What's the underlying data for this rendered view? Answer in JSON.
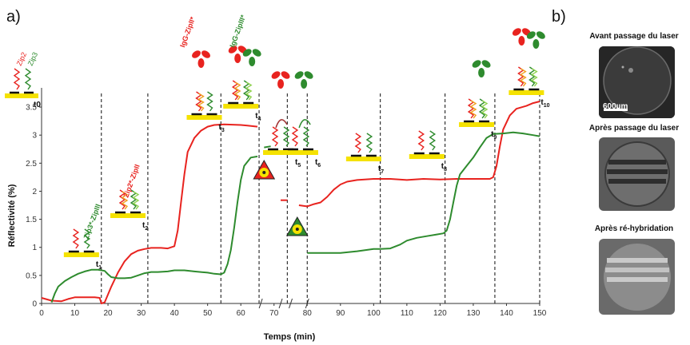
{
  "panel_a_label": "a)",
  "panel_b_label": "b)",
  "chart_data": {
    "type": "line",
    "xlabel": "Temps (min)",
    "ylabel": "Réflectivité (%)",
    "xlim": [
      0,
      150
    ],
    "ylim": [
      0,
      3.7
    ],
    "x_ticks": [
      "0",
      "10",
      "20",
      "30",
      "40",
      "50",
      "60",
      "70",
      "80",
      "90",
      "100",
      "110",
      "120",
      "130",
      "140",
      "150"
    ],
    "y_ticks": [
      "0",
      "0.5",
      "1",
      "1.5",
      "2",
      "2.5",
      "3",
      "3.5"
    ],
    "colors": {
      "red": "#e8231f",
      "green": "#2e8b2e"
    },
    "series": [
      {
        "color": "red",
        "segments": [
          [
            [
              0,
              0.1
            ],
            [
              3,
              0.05
            ],
            [
              6,
              0.04
            ],
            [
              8,
              0.08
            ],
            [
              10,
              0.11
            ],
            [
              14,
              0.11
            ],
            [
              16,
              0.11
            ],
            [
              17.5,
              0.1
            ],
            [
              18,
              0.0
            ],
            [
              19,
              0.02
            ],
            [
              21,
              0.3
            ],
            [
              23,
              0.55
            ],
            [
              25,
              0.75
            ],
            [
              27,
              0.88
            ],
            [
              29,
              0.94
            ],
            [
              31,
              0.97
            ],
            [
              33,
              0.99
            ],
            [
              36,
              0.99
            ],
            [
              38,
              0.98
            ],
            [
              40,
              1.02
            ],
            [
              41,
              1.3
            ],
            [
              42,
              1.8
            ],
            [
              43,
              2.3
            ],
            [
              44,
              2.7
            ],
            [
              46,
              2.95
            ],
            [
              48,
              3.08
            ],
            [
              50,
              3.15
            ],
            [
              52,
              3.18
            ],
            [
              55,
              3.19
            ],
            [
              60,
              3.18
            ],
            [
              62,
              3.17
            ],
            [
              65,
              3.15
            ]
          ],
          [
            [
              72,
              1.84
            ],
            [
              74,
              1.84
            ]
          ],
          [
            [
              77.5,
              1.75
            ],
            [
              80,
              1.73
            ],
            [
              82,
              1.77
            ],
            [
              84,
              1.8
            ],
            [
              86,
              1.9
            ],
            [
              88,
              2.03
            ],
            [
              90,
              2.12
            ],
            [
              92,
              2.17
            ],
            [
              95,
              2.2
            ],
            [
              100,
              2.22
            ],
            [
              105,
              2.22
            ],
            [
              110,
              2.2
            ],
            [
              115,
              2.22
            ],
            [
              120,
              2.21
            ],
            [
              125,
              2.22
            ],
            [
              130,
              2.22
            ],
            [
              135,
              2.22
            ],
            [
              136,
              2.25
            ],
            [
              137,
              2.45
            ],
            [
              138,
              2.8
            ],
            [
              139,
              3.1
            ],
            [
              141,
              3.35
            ],
            [
              143,
              3.47
            ],
            [
              146,
              3.52
            ],
            [
              148,
              3.57
            ],
            [
              150,
              3.6
            ]
          ]
        ]
      },
      {
        "color": "green",
        "segments": [
          [
            [
              3,
              0.02
            ],
            [
              4,
              0.18
            ],
            [
              5,
              0.3
            ],
            [
              7,
              0.4
            ],
            [
              9,
              0.47
            ],
            [
              11,
              0.53
            ],
            [
              13,
              0.57
            ],
            [
              15,
              0.6
            ],
            [
              17,
              0.6
            ],
            [
              19,
              0.58
            ],
            [
              20,
              0.52
            ],
            [
              21,
              0.47
            ],
            [
              23,
              0.45
            ],
            [
              25,
              0.45
            ],
            [
              27,
              0.46
            ],
            [
              29,
              0.5
            ],
            [
              31,
              0.54
            ],
            [
              33,
              0.56
            ],
            [
              35,
              0.56
            ],
            [
              38,
              0.57
            ],
            [
              40,
              0.59
            ],
            [
              43,
              0.59
            ],
            [
              46,
              0.57
            ],
            [
              50,
              0.55
            ],
            [
              52,
              0.53
            ],
            [
              54,
              0.52
            ],
            [
              55,
              0.55
            ],
            [
              56,
              0.7
            ],
            [
              57,
              0.95
            ],
            [
              58,
              1.35
            ],
            [
              59,
              1.8
            ],
            [
              60,
              2.2
            ],
            [
              61,
              2.45
            ],
            [
              63,
              2.6
            ],
            [
              65,
              2.62
            ]
          ],
          [
            [
              67,
              2.78
            ],
            [
              69,
              2.8
            ]
          ],
          [
            [
              80,
              0.9
            ],
            [
              85,
              0.9
            ],
            [
              90,
              0.9
            ],
            [
              95,
              0.93
            ],
            [
              100,
              0.97
            ],
            [
              102,
              0.97
            ],
            [
              105,
              0.98
            ],
            [
              108,
              1.05
            ],
            [
              110,
              1.12
            ],
            [
              113,
              1.17
            ],
            [
              116,
              1.2
            ],
            [
              119,
              1.23
            ],
            [
              121,
              1.25
            ],
            [
              122,
              1.3
            ],
            [
              123,
              1.5
            ],
            [
              124,
              1.8
            ],
            [
              125,
              2.1
            ],
            [
              126,
              2.3
            ],
            [
              128,
              2.45
            ],
            [
              130,
              2.6
            ],
            [
              132,
              2.78
            ],
            [
              134,
              2.95
            ],
            [
              136,
              3.02
            ],
            [
              139,
              3.03
            ],
            [
              142,
              3.05
            ],
            [
              145,
              3.03
            ],
            [
              148,
              3.0
            ],
            [
              150,
              2.98
            ]
          ]
        ]
      }
    ],
    "time_markers": [
      {
        "label": "t1",
        "x": 18
      },
      {
        "label": "t2",
        "x": 32
      },
      {
        "label": "t3",
        "x": 54
      },
      {
        "label": "t4",
        "x": 65.5
      },
      {
        "label": "t5",
        "x": 74
      },
      {
        "label": "t6",
        "x": 80
      },
      {
        "label": "t7",
        "x": 102
      },
      {
        "label": "t8",
        "x": 121.5
      },
      {
        "label": "t9",
        "x": 136.5
      },
      {
        "label": "t10",
        "x": 150
      }
    ],
    "annotations": {
      "zip_red": "Zip2",
      "zip_green": "Zip3",
      "t0": "t0",
      "ann_zip3": "Zip3*-ZipIII",
      "ann_zip2": "Zip2*-ZipII",
      "ann_igg_red": "IgG-ZipII*",
      "ann_igg_green": "IgG-ZipIII*"
    }
  },
  "panel_b": {
    "images": [
      {
        "title": "Avant passage du laser",
        "scale": "600µm"
      },
      {
        "title": "Après passage du laser"
      },
      {
        "title": "Après ré-hybridation"
      }
    ]
  }
}
